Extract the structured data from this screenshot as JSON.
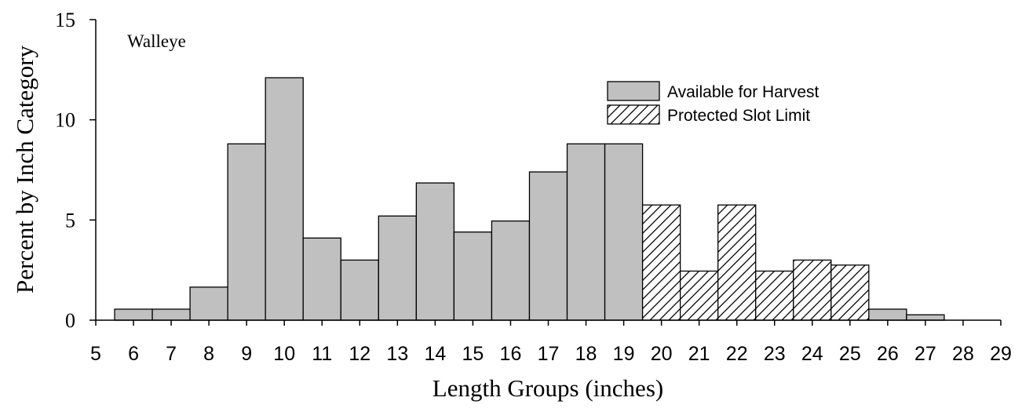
{
  "chart_data": {
    "type": "bar",
    "title": "Walleye",
    "xlabel": "Length Groups (inches)",
    "ylabel": "Percent by Inch Category",
    "xlim": [
      5,
      29
    ],
    "ylim": [
      0,
      15
    ],
    "x_ticks": [
      5,
      6,
      7,
      8,
      9,
      10,
      11,
      12,
      13,
      14,
      15,
      16,
      17,
      18,
      19,
      20,
      21,
      22,
      23,
      24,
      25,
      26,
      27,
      28,
      29
    ],
    "y_ticks": [
      0,
      5,
      10,
      15
    ],
    "grid": false,
    "legend_position": "top-right",
    "series": [
      {
        "name": "Available for Harvest",
        "fill": "#c0c0c0",
        "pattern": "solid",
        "x": [
          6,
          7,
          8,
          9,
          10,
          11,
          12,
          13,
          14,
          15,
          16,
          17,
          18,
          19,
          26,
          27
        ],
        "values": [
          0.55,
          0.55,
          1.65,
          8.8,
          12.1,
          4.1,
          3.0,
          5.2,
          6.85,
          4.4,
          4.95,
          7.4,
          8.8,
          8.8,
          0.55,
          0.27
        ]
      },
      {
        "name": "Protected Slot Limit",
        "fill": "#ffffff",
        "pattern": "diagonal-hatch",
        "x": [
          20,
          21,
          22,
          23,
          24,
          25
        ],
        "values": [
          5.75,
          2.45,
          5.75,
          2.45,
          3.0,
          2.75
        ]
      }
    ]
  }
}
